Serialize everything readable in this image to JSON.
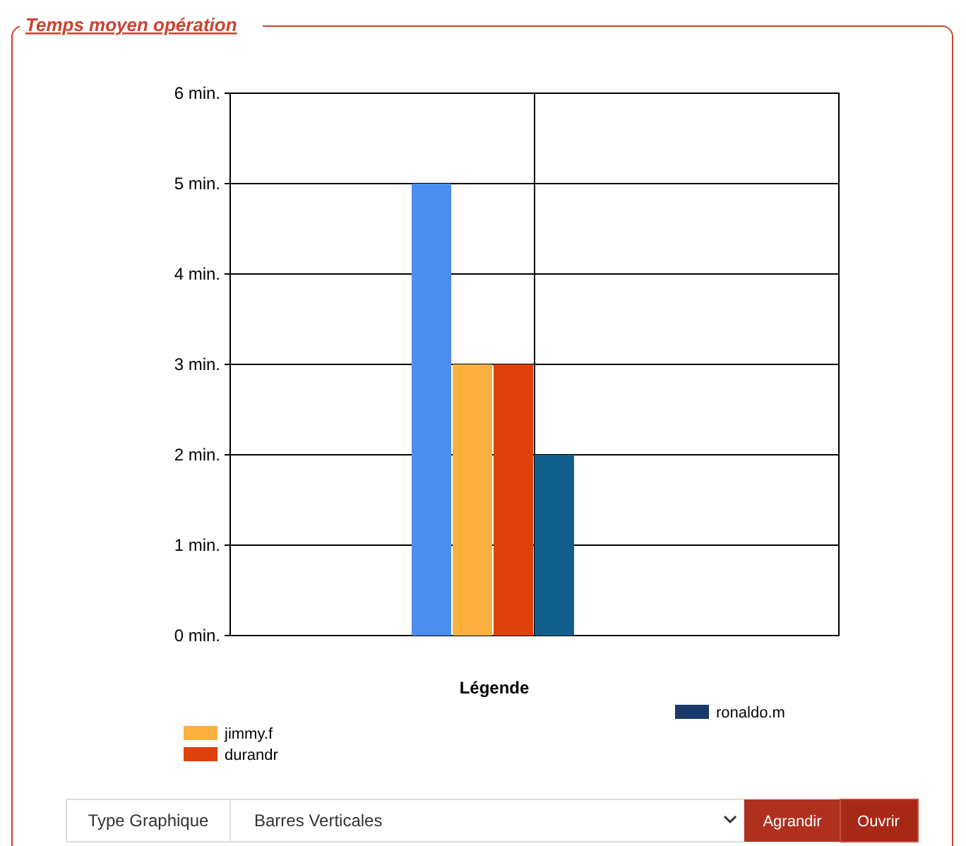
{
  "chart_data": {
    "type": "bar",
    "title": "Temps moyen opération",
    "legend_title": "Légende",
    "categories": [
      null
    ],
    "series": [
      {
        "color": "#4a8ef0",
        "values": [
          5
        ]
      },
      {
        "name": "jimmy.f",
        "color": "#fbb040",
        "values": [
          3
        ]
      },
      {
        "name": "durandr",
        "color": "#e0400a",
        "values": [
          3
        ]
      },
      {
        "color": "#0f5f8a",
        "values": [
          2
        ]
      },
      {
        "color": "#c0c0c0",
        "values": [
          0
        ]
      },
      {
        "name": "ronaldo.m",
        "color": "#1a3a6a",
        "values": [
          0
        ]
      }
    ],
    "ylim": [
      0,
      6
    ],
    "yticks": [
      {
        "value": 0,
        "label": "0 min."
      },
      {
        "value": 1,
        "label": "1 min."
      },
      {
        "value": 2,
        "label": "2 min."
      },
      {
        "value": 3,
        "label": "3 min."
      },
      {
        "value": 4,
        "label": "4 min."
      },
      {
        "value": 5,
        "label": "5 min."
      },
      {
        "value": 6,
        "label": "6 min."
      }
    ],
    "grid": true,
    "legend": "bottom",
    "annotations": [
      "Type Graphique",
      "Barres Verticales",
      "Agrandir",
      "Ouvrir"
    ]
  }
}
